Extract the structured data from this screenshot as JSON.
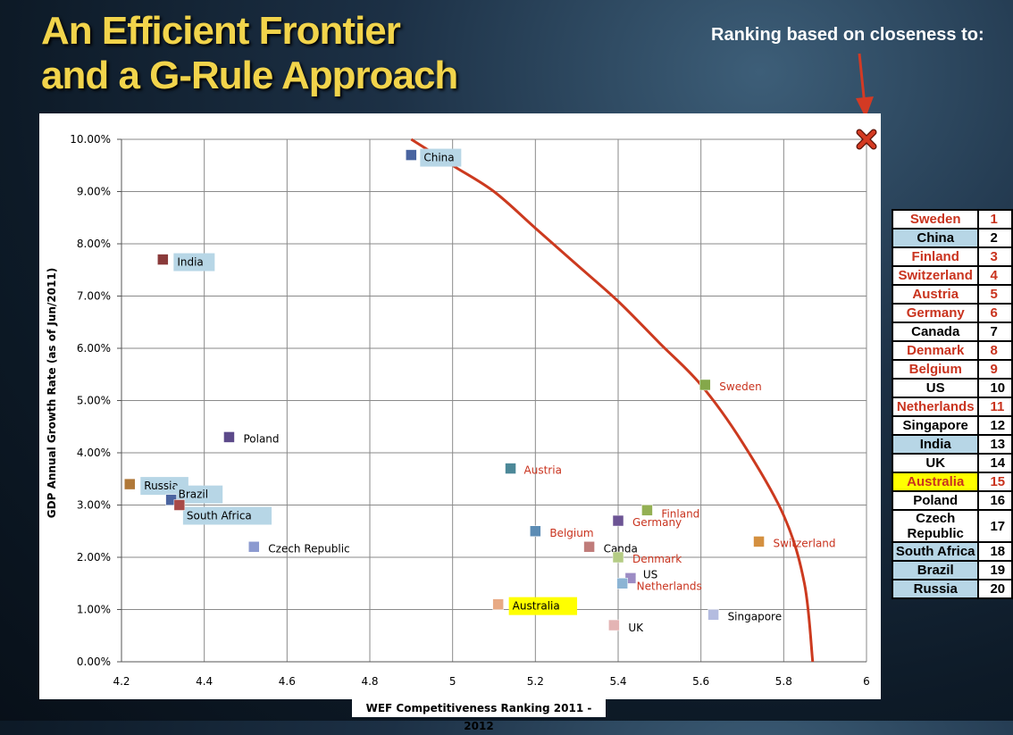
{
  "title_line1": "An Efficient Frontier",
  "title_line2": "and a G-Rule Approach",
  "subtitle": "Ranking based on closeness to:",
  "colors": {
    "title": "#f2d44b",
    "frontier": "#cc3a1f",
    "red_label": "#c9331e",
    "label_highlight_blue": "#b7d6e6",
    "label_highlight_yellow": "#ffff00"
  },
  "chart_data": {
    "type": "scatter",
    "xlabel": "WEF Competitiveness Ranking 2011 - 2012",
    "ylabel": "GDP Annual Growth Rate (as of Jun/2011)",
    "xlim": [
      4.2,
      6
    ],
    "ylim": [
      0,
      10
    ],
    "xticks": [
      "4.2",
      "4.4",
      "4.6",
      "4.8",
      "5",
      "5.2",
      "5.4",
      "5.6",
      "5.8",
      "6"
    ],
    "yticks": [
      "0.00%",
      "1.00%",
      "2.00%",
      "3.00%",
      "4.00%",
      "5.00%",
      "6.00%",
      "7.00%",
      "8.00%",
      "9.00%",
      "10.00%"
    ],
    "grid": true,
    "points": [
      {
        "name": "China",
        "x": 4.9,
        "y": 9.7,
        "color": "#4a64a0",
        "label_color": "#000000",
        "highlight": "blue"
      },
      {
        "name": "India",
        "x": 4.3,
        "y": 7.7,
        "color": "#8a3a3a",
        "label_color": "#000000",
        "highlight": "blue"
      },
      {
        "name": "Poland",
        "x": 4.46,
        "y": 4.3,
        "color": "#5c4a8a",
        "label_color": "#000000",
        "highlight": "none"
      },
      {
        "name": "Russia",
        "x": 4.22,
        "y": 3.4,
        "color": "#b07838",
        "label_color": "#000000",
        "highlight": "blue"
      },
      {
        "name": "Brazil",
        "x": 4.32,
        "y": 3.1,
        "color": "#4a64a0",
        "label_color": "#000000",
        "highlight": "blue"
      },
      {
        "name": "South Africa",
        "x": 4.34,
        "y": 3.0,
        "color": "#a84a48",
        "label_color": "#000000",
        "highlight": "blue"
      },
      {
        "name": "Czech Republic",
        "x": 4.52,
        "y": 2.2,
        "color": "#8c9ad0",
        "label_color": "#000000",
        "highlight": "none"
      },
      {
        "name": "Sweden",
        "x": 5.61,
        "y": 5.3,
        "color": "#84a84a",
        "label_color": "#c9331e",
        "highlight": "none"
      },
      {
        "name": "Austria",
        "x": 5.14,
        "y": 3.7,
        "color": "#4c8898",
        "label_color": "#c9331e",
        "highlight": "none"
      },
      {
        "name": "Finland",
        "x": 5.47,
        "y": 2.9,
        "color": "#94b054",
        "label_color": "#c9331e",
        "highlight": "none"
      },
      {
        "name": "Germany",
        "x": 5.4,
        "y": 2.7,
        "color": "#6c5494",
        "label_color": "#c9331e",
        "highlight": "none"
      },
      {
        "name": "Belgium",
        "x": 5.2,
        "y": 2.5,
        "color": "#5c8cb4",
        "label_color": "#c9331e",
        "highlight": "none"
      },
      {
        "name": "Canda",
        "x": 5.33,
        "y": 2.2,
        "color": "#c07c7a",
        "label_color": "#000000",
        "highlight": "none"
      },
      {
        "name": "Switzerland",
        "x": 5.74,
        "y": 2.3,
        "color": "#d49040",
        "label_color": "#c9331e",
        "highlight": "none"
      },
      {
        "name": "Denmark",
        "x": 5.4,
        "y": 2.0,
        "color": "#b4cc84",
        "label_color": "#c9331e",
        "highlight": "none"
      },
      {
        "name": "US",
        "x": 5.43,
        "y": 1.6,
        "color": "#9c8cc4",
        "label_color": "#000000",
        "highlight": "none"
      },
      {
        "name": "Netherlands",
        "x": 5.41,
        "y": 1.5,
        "color": "#8cb4d4",
        "label_color": "#c9331e",
        "highlight": "none"
      },
      {
        "name": "Australia",
        "x": 5.11,
        "y": 1.1,
        "color": "#e8aa84",
        "label_color": "#000000",
        "highlight": "yellow"
      },
      {
        "name": "Singapore",
        "x": 5.63,
        "y": 0.9,
        "color": "#b4bce0",
        "label_color": "#000000",
        "highlight": "none"
      },
      {
        "name": "UK",
        "x": 5.39,
        "y": 0.7,
        "color": "#e4b4b4",
        "label_color": "#000000",
        "highlight": "none"
      }
    ],
    "frontier_curve": {
      "color": "#cc3a1f",
      "points": [
        [
          4.9,
          10.0
        ],
        [
          5.0,
          9.5
        ],
        [
          5.1,
          9.0
        ],
        [
          5.2,
          8.3
        ],
        [
          5.3,
          7.6
        ],
        [
          5.4,
          6.9
        ],
        [
          5.5,
          6.1
        ],
        [
          5.6,
          5.3
        ],
        [
          5.7,
          4.2
        ],
        [
          5.8,
          2.8
        ],
        [
          5.85,
          1.5
        ],
        [
          5.87,
          0.0
        ]
      ]
    },
    "ideal_marker": "x-mark-icon"
  },
  "ranking": [
    {
      "country": "Sweden",
      "rank": "1",
      "style": "red-white"
    },
    {
      "country": "China",
      "rank": "2",
      "style": "black-blue"
    },
    {
      "country": "Finland",
      "rank": "3",
      "style": "red-white"
    },
    {
      "country": "Switzerland",
      "rank": "4",
      "style": "red-white"
    },
    {
      "country": "Austria",
      "rank": "5",
      "style": "red-white"
    },
    {
      "country": "Germany",
      "rank": "6",
      "style": "red-white"
    },
    {
      "country": "Canada",
      "rank": "7",
      "style": "black-white"
    },
    {
      "country": "Denmark",
      "rank": "8",
      "style": "red-white"
    },
    {
      "country": "Belgium",
      "rank": "9",
      "style": "red-white"
    },
    {
      "country": "US",
      "rank": "10",
      "style": "black-white"
    },
    {
      "country": "Netherlands",
      "rank": "11",
      "style": "red-white"
    },
    {
      "country": "Singapore",
      "rank": "12",
      "style": "black-white"
    },
    {
      "country": "India",
      "rank": "13",
      "style": "black-blue"
    },
    {
      "country": "UK",
      "rank": "14",
      "style": "black-white"
    },
    {
      "country": "Australia",
      "rank": "15",
      "style": "red-yellow"
    },
    {
      "country": "Poland",
      "rank": "16",
      "style": "black-white"
    },
    {
      "country": "Czech Republic",
      "rank": "17",
      "style": "black-white"
    },
    {
      "country": "South Africa",
      "rank": "18",
      "style": "black-blue"
    },
    {
      "country": "Brazil",
      "rank": "19",
      "style": "black-blue"
    },
    {
      "country": "Russia",
      "rank": "20",
      "style": "black-blue"
    }
  ]
}
